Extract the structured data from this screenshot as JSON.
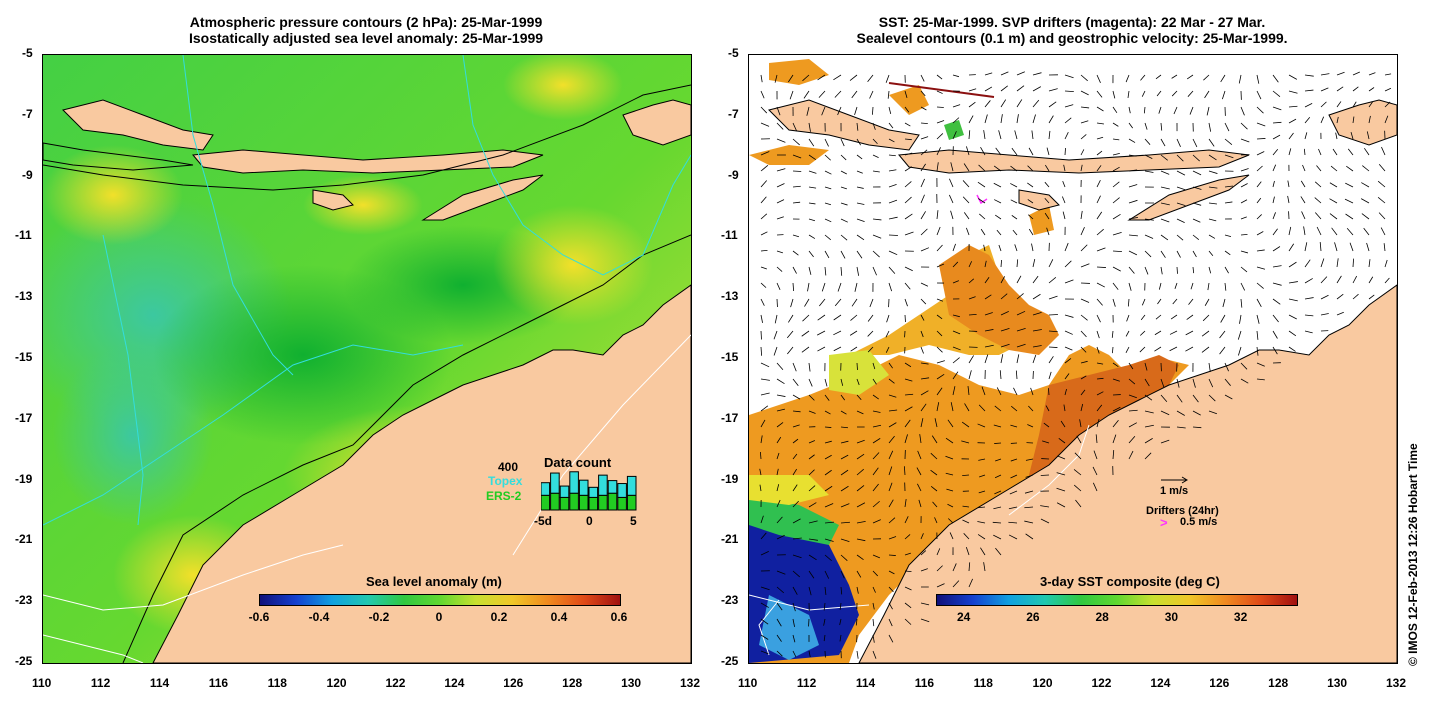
{
  "left_panel": {
    "title_line1": "Atmospheric pressure contours (2 hPa): 25-Mar-1999",
    "title_line2": "Isostatically adjusted sea level anomaly: 25-Mar-1999",
    "colorbar": {
      "title": "Sea level anomaly (m)",
      "ticks": [
        "-0.6",
        "-0.4",
        "-0.2",
        "0",
        "0.2",
        "0.4",
        "0.6"
      ]
    },
    "data_count": {
      "title": "Data count",
      "max_label": "400",
      "topex_label": "Topex",
      "ers_label": "ERS-2",
      "x_ticks": [
        "-5d",
        "0",
        "5"
      ],
      "topex_color": "#33dddd",
      "ers_color": "#22cc22",
      "topex_values": [
        0.5,
        0.8,
        0.45,
        0.85,
        0.6,
        0.4,
        0.8,
        0.5,
        0.55,
        0.75
      ],
      "ers_values": [
        0.35,
        0.4,
        0.3,
        0.4,
        0.35,
        0.3,
        0.35,
        0.4,
        0.3,
        0.35
      ]
    }
  },
  "right_panel": {
    "title_line1": "SST: 25-Mar-1999. SVP drifters (magenta): 22 Mar - 27 Mar.",
    "title_line2": "Sealevel contours (0.1 m) and geostrophic velocity: 25-Mar-1999.",
    "colorbar": {
      "title": "3-day SST composite (deg C)",
      "ticks": [
        "24",
        "26",
        "28",
        "30",
        "32"
      ]
    },
    "legend": {
      "velocity_label": "1 m/s",
      "drifters_label": "Drifters (24hr)",
      "drifter_speed_label": "0.5 m/s"
    }
  },
  "axes": {
    "y_ticks": [
      "-5",
      "-7",
      "-9",
      "-11",
      "-13",
      "-15",
      "-17",
      "-19",
      "-21",
      "-23",
      "-25"
    ],
    "x_ticks": [
      "110",
      "112",
      "114",
      "116",
      "118",
      "120",
      "122",
      "124",
      "126",
      "128",
      "130",
      "132"
    ],
    "lat_range": [
      -25,
      -5
    ],
    "lon_range": [
      110,
      132
    ]
  },
  "credit": "© IMOS 12-Feb-2013 12:26 Hobart Time",
  "colors": {
    "land": "#f9c9a0",
    "ocean_green": "#3fd23f",
    "anomaly_yellow": "#e8e84a",
    "sst_orange": "#ee9a20",
    "sst_red": "#c8321a",
    "sst_blue": "#1020a0",
    "drifter": "#ff33ff"
  }
}
